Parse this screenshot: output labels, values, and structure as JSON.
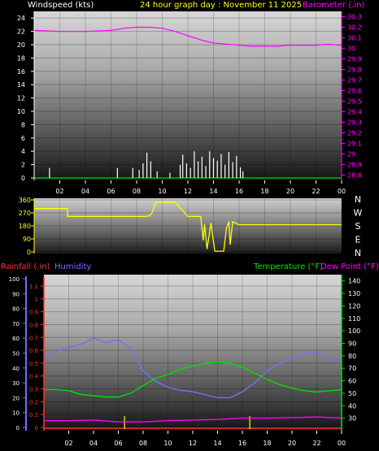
{
  "colors": {
    "background": "#000000",
    "wind_label": "#ffffff",
    "title": "#ffff00",
    "barometer": "#ff00ff",
    "winddir": "#ffff00",
    "rainfall": "#ff3333",
    "humidity": "#7070ff",
    "temperature": "#00e000",
    "dewpoint": "#ff00ff",
    "rain_marks": "#ffff00",
    "tick_text": "#ffffff"
  },
  "chart_data": [
    {
      "type": "line",
      "name": "wind-barometer",
      "title": "24 hour graph day : November 11 2025",
      "left_axis_label": "Windspeed (kts)",
      "right_axis_label": "Barometer (.in)",
      "x_ticks": [
        "02",
        "04",
        "06",
        "08",
        "10",
        "12",
        "14",
        "16",
        "18",
        "20",
        "22",
        "00"
      ],
      "y_left_ticks": [
        "0",
        "2",
        "4",
        "6",
        "8",
        "10",
        "12",
        "14",
        "16",
        "18",
        "20",
        "22",
        "24"
      ],
      "y_left_range": [
        0,
        25
      ],
      "y_right_ticks": [
        "28.8",
        "28.9",
        "29",
        "29.1",
        "29.2",
        "29.3",
        "29.4",
        "29.5",
        "29.6",
        "29.7",
        "29.8",
        "29.9",
        "30",
        "30.1",
        "30.2",
        "30.3"
      ],
      "y_right_range": [
        28.75,
        30.35
      ],
      "grid": true,
      "barometer": {
        "hours": [
          0,
          2,
          4,
          6,
          7,
          8,
          9,
          10,
          11,
          12,
          13,
          14,
          15,
          16,
          17,
          18,
          19,
          20,
          21,
          22,
          23,
          24
        ],
        "values": [
          30.17,
          30.16,
          30.16,
          30.17,
          30.19,
          30.2,
          30.2,
          30.19,
          30.16,
          30.12,
          30.08,
          30.05,
          30.04,
          30.03,
          30.02,
          30.02,
          30.02,
          30.03,
          30.03,
          30.03,
          30.04,
          30.03
        ]
      },
      "wind_gusts": {
        "hours": [
          1.2,
          6.5,
          7.7,
          8.2,
          8.5,
          8.8,
          9.1,
          9.6,
          10.6,
          11.4,
          11.6,
          11.9,
          12.2,
          12.5,
          12.8,
          13.1,
          13.4,
          13.7,
          14.0,
          14.3,
          14.6,
          14.9,
          15.2,
          15.5,
          15.8,
          16.1,
          16.3
        ],
        "values": [
          1.5,
          1.5,
          1.5,
          1.2,
          2.2,
          3.8,
          2.5,
          1.0,
          0.8,
          2.0,
          3.5,
          2.2,
          1.5,
          4.0,
          2.5,
          3.2,
          1.8,
          4.0,
          3.0,
          2.6,
          3.6,
          2.0,
          3.9,
          2.4,
          3.3,
          1.6,
          1.0
        ]
      }
    },
    {
      "type": "line",
      "name": "wind-direction",
      "y_ticks": [
        "360",
        "270",
        "180",
        "90",
        "0"
      ],
      "y_range": [
        0,
        360
      ],
      "compass": [
        "N",
        "W",
        "S",
        "E",
        "N"
      ],
      "x_ticks": [],
      "direction": {
        "hours": [
          0,
          2.6,
          2.6,
          8.7,
          9.0,
          9.2,
          9.5,
          10,
          11,
          12,
          12.1,
          13.0,
          13.2,
          13.3,
          13.5,
          13.8,
          14.1,
          14.4,
          14.8,
          15.0,
          15.2,
          15.3,
          15.5,
          15.8,
          16,
          17,
          18,
          20,
          22,
          24
        ],
        "values": [
          300,
          300,
          245,
          245,
          250,
          270,
          345,
          345,
          345,
          245,
          245,
          245,
          80,
          190,
          20,
          200,
          5,
          5,
          5,
          160,
          210,
          50,
          210,
          195,
          188,
          188,
          188,
          188,
          188,
          188
        ]
      }
    },
    {
      "type": "line",
      "name": "rain-humidity-temperature",
      "rain_label": "Rainfall (.in)",
      "humidity_label": "Humidity",
      "temperature_label": "Temperature (°F)",
      "dewpoint_label": "Dew Point (°F)",
      "x_ticks": [
        "02",
        "04",
        "06",
        "08",
        "10",
        "12",
        "14",
        "16",
        "18",
        "20",
        "22",
        "00"
      ],
      "humidity_ticks": [
        "0",
        "10",
        "20",
        "30",
        "40",
        "50",
        "60",
        "70",
        "80",
        "90",
        "100"
      ],
      "humidity_range": [
        0,
        100
      ],
      "rain_ticks": [
        "0",
        "0.1",
        "0.2",
        "0.3",
        "0.4",
        "0.5",
        "0.6",
        "0.7",
        "0.8",
        "0.9",
        "1",
        "1.1"
      ],
      "rain_range": [
        0,
        1.1
      ],
      "temperature_ticks": [
        "30",
        "40",
        "50",
        "60",
        "70",
        "80",
        "90",
        "100",
        "110",
        "120",
        "130",
        "140"
      ],
      "temperature_range": [
        20,
        145
      ],
      "grid": true,
      "humidity": {
        "hours": [
          0,
          1,
          2,
          3,
          4,
          5,
          6,
          7,
          8,
          9,
          10,
          11,
          12,
          13,
          14,
          15,
          16,
          17,
          18,
          19,
          20,
          21,
          22,
          23,
          24
        ],
        "values": [
          46,
          51,
          54,
          56,
          60,
          57,
          59,
          53,
          38,
          31,
          27,
          25,
          24,
          22,
          20,
          20,
          24,
          30,
          38,
          43,
          47,
          49,
          51,
          47,
          44
        ]
      },
      "temperature": {
        "hours": [
          0,
          1,
          2,
          3,
          4,
          5,
          6,
          7,
          8,
          9,
          10,
          11,
          12,
          13,
          14,
          15,
          16,
          17,
          18,
          19,
          20,
          21,
          22,
          23,
          24
        ],
        "values": [
          53,
          53,
          52,
          49,
          48,
          47,
          47,
          50,
          56,
          62,
          65,
          69,
          72,
          74,
          75,
          74,
          71,
          66,
          61,
          57,
          54,
          52,
          51,
          52,
          53
        ]
      },
      "dewpoint": {
        "hours": [
          0,
          2,
          4,
          6,
          8,
          10,
          12,
          14,
          16,
          18,
          20,
          22,
          24
        ],
        "values": [
          28,
          28,
          28.5,
          27,
          27,
          28,
          28.5,
          29,
          30,
          30,
          30.5,
          31,
          30
        ]
      },
      "rain_marks_hours": [
        6.5,
        16.6
      ]
    }
  ]
}
